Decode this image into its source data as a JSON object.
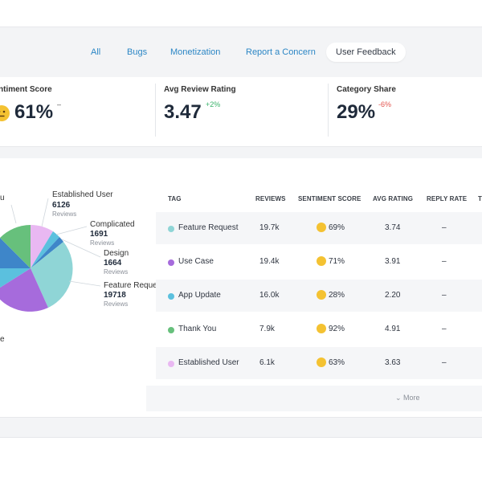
{
  "tabs": [
    {
      "label": "All"
    },
    {
      "label": "Bugs"
    },
    {
      "label": "Monetization"
    },
    {
      "label": "Report a Concern"
    },
    {
      "label": "User Feedback",
      "active": true
    }
  ],
  "stats": {
    "sentiment": {
      "label": "ntiment Score",
      "value": "61%",
      "delta": "–",
      "icon": "neutral-face-emoji"
    },
    "rating": {
      "label": "Avg Review Rating",
      "value": "3.47",
      "delta": "+2%"
    },
    "share": {
      "label": "Category Share",
      "value": "29%",
      "delta": "-6%"
    }
  },
  "pie": {
    "labels": [
      {
        "name": "u"
      },
      {
        "name": "Established User",
        "count": "6126",
        "unit": "Reviews"
      },
      {
        "name": "Complicated",
        "count": "1691",
        "unit": "Reviews"
      },
      {
        "name": "Design",
        "count": "1664",
        "unit": "Reviews"
      },
      {
        "name": "Feature Reques",
        "count": "19718",
        "unit": "Reviews"
      },
      {
        "name": "e"
      }
    ],
    "colors": [
      "#5bc0de",
      "#a66bdc",
      "#8fd5d6",
      "#e9b8f2",
      "#67c07c",
      "#3e86c9"
    ]
  },
  "table": {
    "headers": [
      "TAG",
      "REVIEWS",
      "SENTIMENT SCORE",
      "AVG RATING",
      "REPLY RATE",
      "T"
    ],
    "rows": [
      {
        "tag": "Feature Request",
        "color": "#8fd5d6",
        "reviews": "19.7k",
        "sentiment": "69%",
        "rating": "3.74",
        "reply": "–"
      },
      {
        "tag": "Use Case",
        "color": "#a66bdc",
        "reviews": "19.4k",
        "sentiment": "71%",
        "rating": "3.91",
        "reply": "–"
      },
      {
        "tag": "App Update",
        "color": "#5bc0de",
        "reviews": "16.0k",
        "sentiment": "28%",
        "rating": "2.20",
        "reply": "–"
      },
      {
        "tag": "Thank You",
        "color": "#67c07c",
        "reviews": "7.9k",
        "sentiment": "92%",
        "rating": "4.91",
        "reply": "–"
      },
      {
        "tag": "Established User",
        "color": "#e9b8f2",
        "reviews": "6.1k",
        "sentiment": "63%",
        "rating": "3.63",
        "reply": "–"
      }
    ],
    "more_label": "⌄ More"
  }
}
